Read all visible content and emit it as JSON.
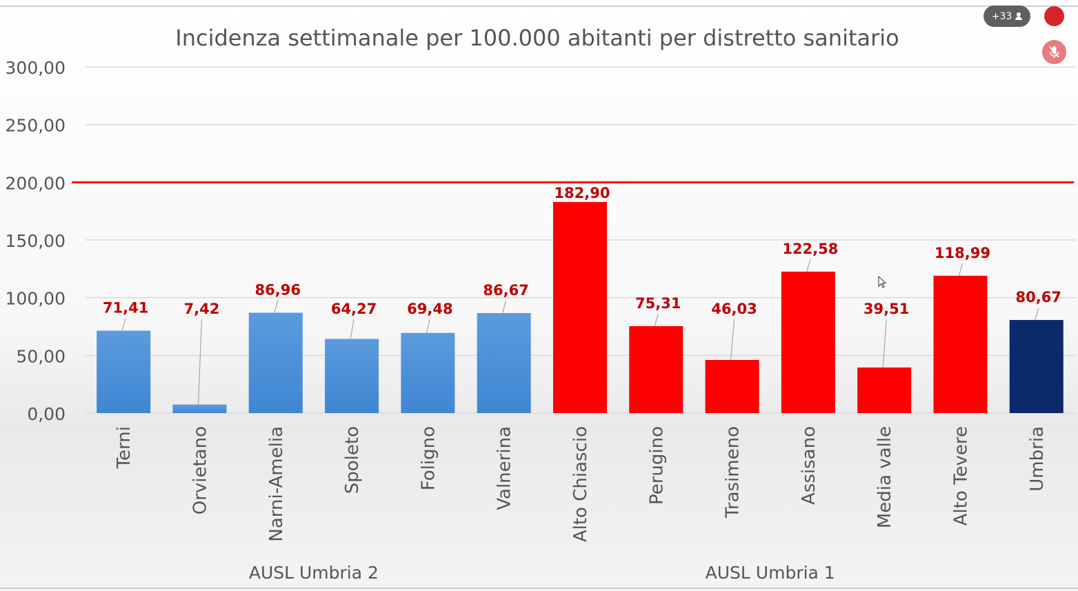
{
  "overlay": {
    "participants_label": "+33",
    "participants_icon": "person-icon",
    "record_icon": "record-dot-icon",
    "mic_icon": "mic-muted-icon"
  },
  "colors": {
    "ausl2": "#4a90d9",
    "ausl1": "#ff0000",
    "umbria": "#0a2a6b",
    "threshold": "#ff0000",
    "value_label": "#c00000"
  },
  "chart_data": {
    "type": "bar",
    "title": "Incidenza settimanale per 100.000 abitanti per distretto sanitario",
    "categories": [
      "Terni",
      "Orvietano",
      "Narni-Amelia",
      "Spoleto",
      "Foligno",
      "Valnerina",
      "Alto Chiascio",
      "Perugino",
      "Trasimeno",
      "Assisano",
      "Media valle",
      "Alto Tevere",
      "Umbria"
    ],
    "values": [
      71.41,
      7.42,
      86.96,
      64.27,
      69.48,
      86.67,
      182.9,
      75.31,
      46.03,
      122.58,
      39.51,
      118.99,
      80.67
    ],
    "value_labels": [
      "71,41",
      "7,42",
      "86,96",
      "64,27",
      "69,48",
      "86,67",
      "182,90",
      "75,31",
      "46,03",
      "122,58",
      "39,51",
      "118,99",
      "80,67"
    ],
    "bar_colors": [
      "#4a90d9",
      "#4a90d9",
      "#4a90d9",
      "#4a90d9",
      "#4a90d9",
      "#4a90d9",
      "#ff0000",
      "#ff0000",
      "#ff0000",
      "#ff0000",
      "#ff0000",
      "#ff0000",
      "#0a2a6b"
    ],
    "groups": [
      {
        "label": "AUSL Umbria 2",
        "from": 0,
        "to": 5
      },
      {
        "label": "AUSL Umbria 1",
        "from": 6,
        "to": 11
      }
    ],
    "ylim": [
      0,
      300
    ],
    "yticks": [
      0,
      50,
      100,
      150,
      200,
      250,
      300
    ],
    "ytick_labels": [
      "0,00",
      "50,00",
      "100,00",
      "150,00",
      "200,00",
      "250,00",
      "300,00"
    ],
    "threshold": 200,
    "grid": true,
    "xlabel": "",
    "ylabel": ""
  }
}
